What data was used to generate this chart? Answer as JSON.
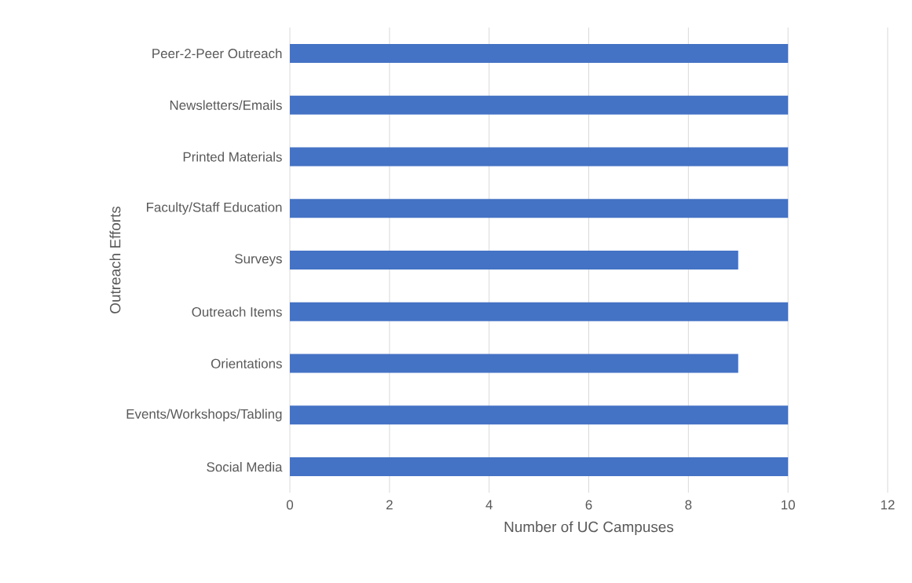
{
  "chart_data": {
    "type": "bar",
    "orientation": "horizontal",
    "xlabel": "Number of UC Campuses",
    "ylabel": "Outreach Efforts",
    "categories": [
      "Peer-2-Peer Outreach",
      "Newsletters/Emails",
      "Printed Materials",
      "Faculty/Staff Education",
      "Surveys",
      "Outreach Items",
      "Orientations",
      "Events/Workshops/Tabling",
      "Social Media"
    ],
    "values": [
      10,
      10,
      10,
      10,
      9,
      10,
      9,
      10,
      10
    ],
    "color": "#4472c4",
    "xlim": [
      0,
      12
    ],
    "xticks": [
      0,
      2,
      4,
      6,
      8,
      10,
      12
    ],
    "grid": "x"
  }
}
